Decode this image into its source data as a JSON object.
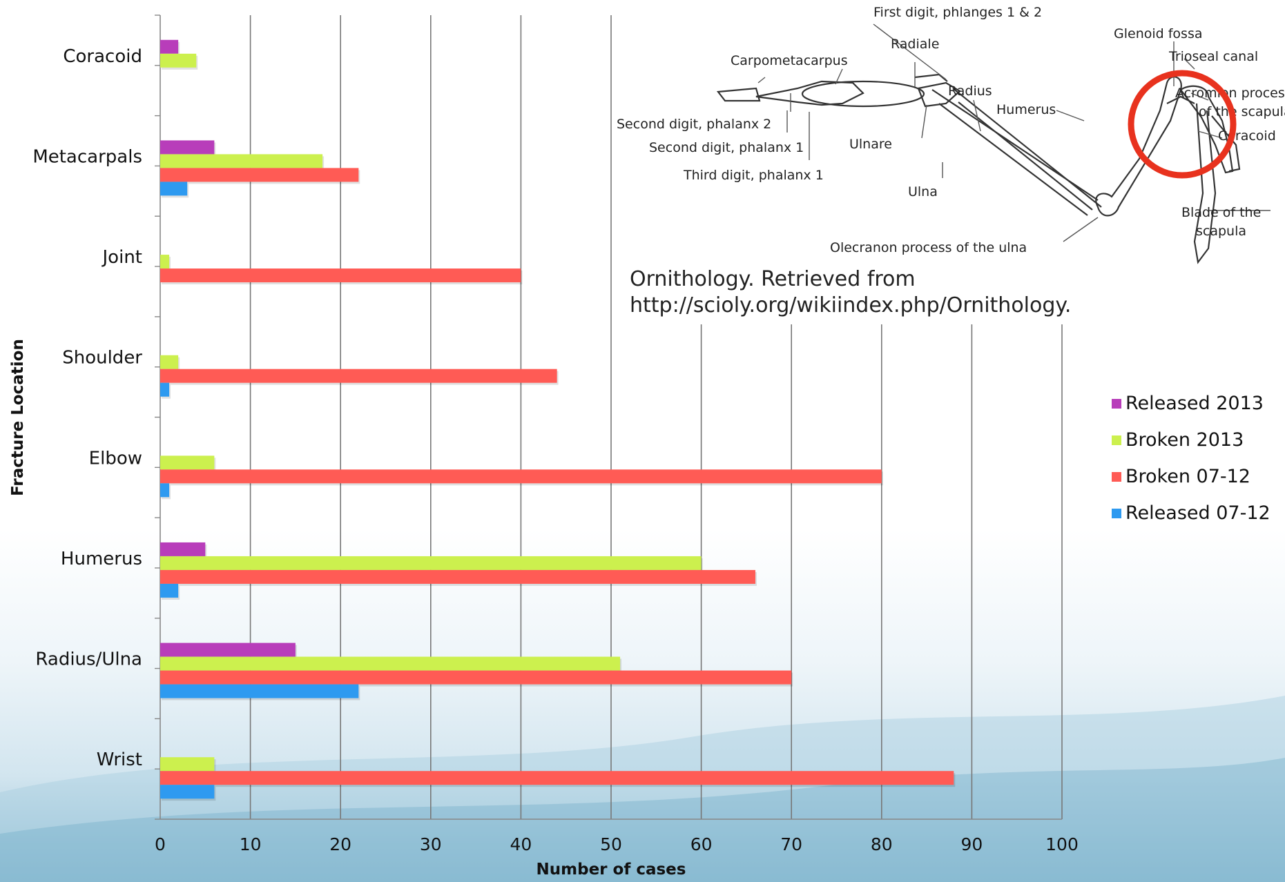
{
  "chart_data": {
    "type": "bar",
    "orientation": "horizontal",
    "categories": [
      "Coracoid",
      "Metacarpals",
      "Joint",
      "Shoulder",
      "Elbow",
      "Humerus",
      "Radius/Ulna",
      "Wrist"
    ],
    "series": [
      {
        "name": "Released 2013",
        "color": "#b83dba",
        "values": [
          2,
          6,
          0,
          0,
          0,
          5,
          15,
          0
        ]
      },
      {
        "name": "Broken 2013",
        "color": "#ccf04e",
        "values": [
          4,
          18,
          1,
          2,
          6,
          60,
          51,
          6
        ]
      },
      {
        "name": "Broken 07-12",
        "color": "#ff5b55",
        "values": [
          0,
          22,
          40,
          44,
          80,
          66,
          70,
          88
        ]
      },
      {
        "name": "Released 07-12",
        "color": "#2e9af0",
        "values": [
          0,
          3,
          0,
          1,
          1,
          2,
          22,
          6
        ]
      }
    ],
    "xlim": [
      0,
      100
    ],
    "xticks": [
      "0",
      "10",
      "20",
      "30",
      "40",
      "50",
      "60",
      "70",
      "80",
      "90",
      "100"
    ],
    "xlabel": "Number of cases",
    "ylabel": "Fracture Location",
    "grid": "vertical",
    "legend_position": "right"
  },
  "legend_labels": [
    "Released 2013",
    "Broken 2013",
    "Broken 07-12",
    "Released 07-12"
  ],
  "inset": {
    "labels": {
      "first_digit": "First digit, phlanges 1 & 2",
      "radiale": "Radiale",
      "carpometacarpus": "Carpometacarpus",
      "radius": "Radius",
      "humerus": "Humerus",
      "second_digit_2": "Second digit, phalanx 2",
      "second_digit_1": "Second digit, phalanx 1",
      "third_digit_1": "Third digit, phalanx 1",
      "ulnare": "Ulnare",
      "ulna": "Ulna",
      "olecranon": "Olecranon process of the ulna",
      "glenoid": "Glenoid fossa",
      "trioseal": "Trioseal canal",
      "acromion_1": "Acromion process",
      "acromion_2": "of the scapula",
      "coracoid": "Coracoid",
      "blade_1": "Blade of the",
      "blade_2": "scapula"
    },
    "highlight_color": "#e8321e"
  },
  "citation": {
    "line1": "Ornithology. Retrieved from",
    "line2": "http://scioly.org/wikiindex.php/Ornithology."
  }
}
